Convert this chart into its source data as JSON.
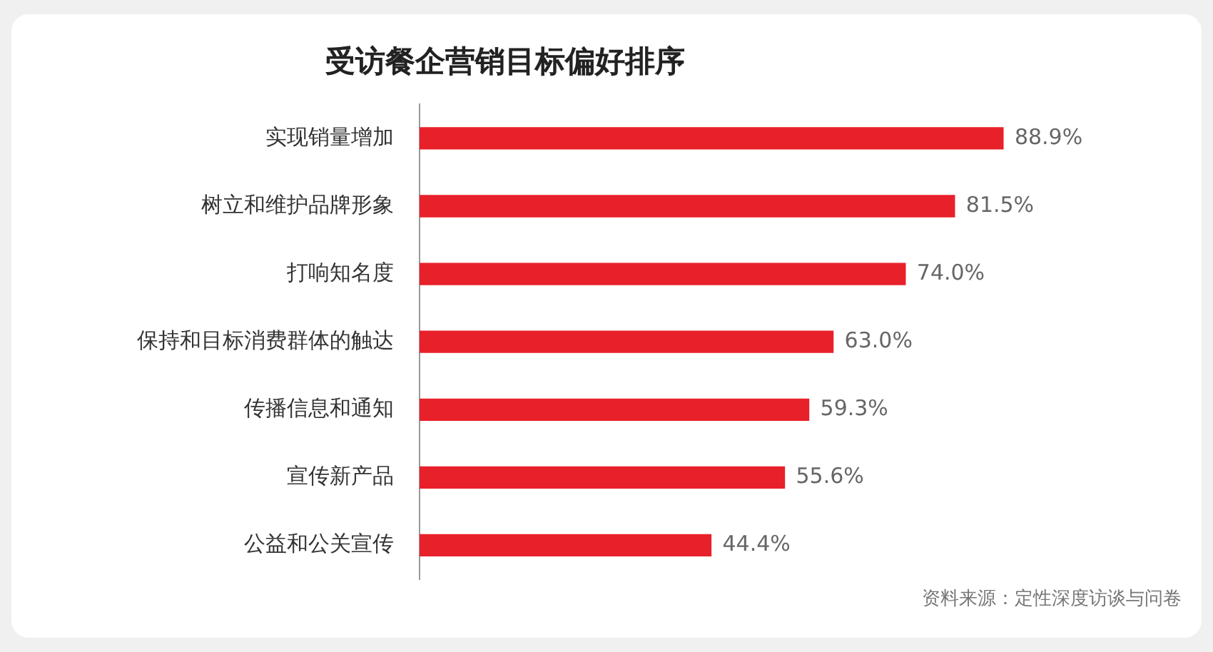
{
  "chart_data": {
    "type": "bar",
    "orientation": "horizontal",
    "title": "受访餐企营销目标偏好排序",
    "categories": [
      "实现销量增加",
      "树立和维护品牌形象",
      "打响知名度",
      "保持和目标消费群体的触达",
      "传播信息和通知",
      "宣传新产品",
      "公益和公关宣传"
    ],
    "values": [
      88.9,
      81.5,
      74.0,
      63.0,
      59.3,
      55.6,
      44.4
    ],
    "value_labels": [
      "88.9%",
      "81.5%",
      "74.0%",
      "63.0%",
      "59.3%",
      "55.6%",
      "44.4%"
    ],
    "color": "#e8202a",
    "grid": false,
    "legend": false,
    "annotations": [
      "资料来源：定性深度访谈与问卷"
    ]
  }
}
